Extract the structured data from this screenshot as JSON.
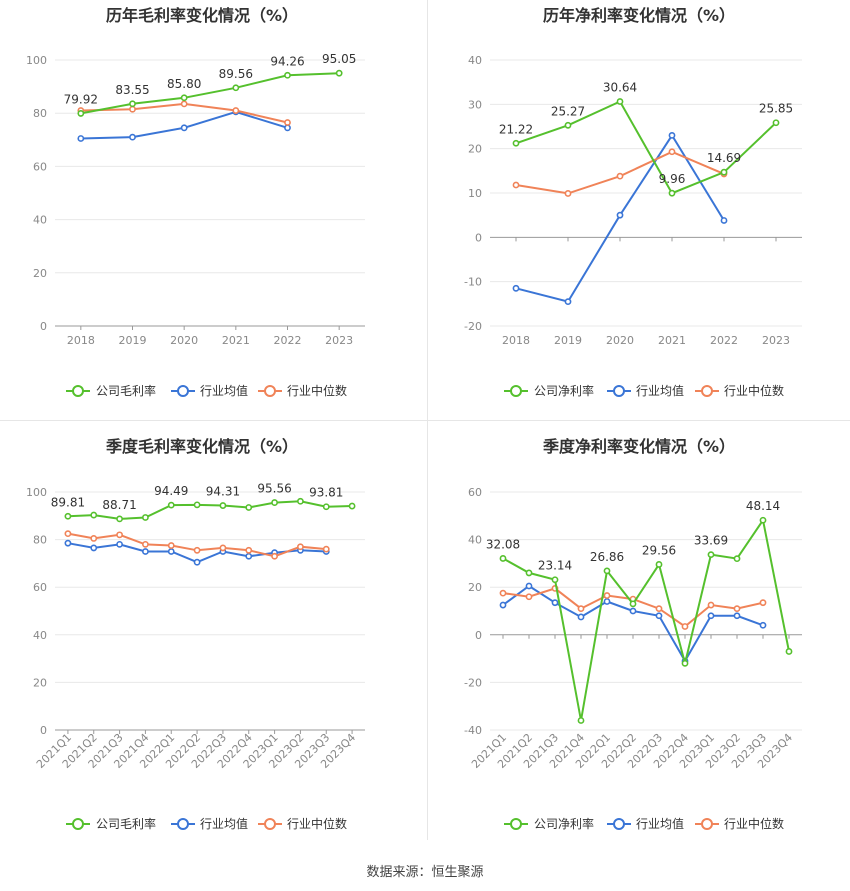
{
  "source_label": "数据来源：恒生聚源",
  "colors": {
    "company": "#55c02d",
    "avg": "#3a75d6",
    "median": "#f08358",
    "grid": "#e8e8e8",
    "axis": "#999999"
  },
  "chart_data": [
    {
      "type": "line",
      "title": "历年毛利率变化情况（%）",
      "categories": [
        "2018",
        "2019",
        "2020",
        "2021",
        "2022",
        "2023"
      ],
      "ylim": [
        0,
        100
      ],
      "yticks": [
        0,
        20,
        40,
        60,
        80,
        100
      ],
      "grid": true,
      "legend_position": "bottom",
      "series": [
        {
          "name": "公司毛利率",
          "key": "company",
          "values": [
            79.92,
            83.55,
            85.8,
            89.56,
            94.26,
            95.05
          ],
          "labels": [
            "79.92",
            "83.55",
            "85.80",
            "89.56",
            "94.26",
            "95.05"
          ]
        },
        {
          "name": "行业均值",
          "key": "avg",
          "values": [
            70.5,
            71.0,
            74.5,
            80.5,
            74.5,
            null
          ]
        },
        {
          "name": "行业中位数",
          "key": "median",
          "values": [
            81.0,
            81.5,
            83.5,
            81.0,
            76.5,
            null
          ]
        }
      ]
    },
    {
      "type": "line",
      "title": "历年净利率变化情况（%）",
      "categories": [
        "2018",
        "2019",
        "2020",
        "2021",
        "2022",
        "2023"
      ],
      "ylim": [
        -20,
        40
      ],
      "yticks": [
        -20,
        -10,
        0,
        10,
        20,
        30,
        40
      ],
      "grid": true,
      "legend_position": "bottom",
      "series": [
        {
          "name": "公司净利率",
          "key": "company",
          "values": [
            21.22,
            25.27,
            30.64,
            9.96,
            14.69,
            25.85
          ],
          "labels": [
            "21.22",
            "25.27",
            "30.64",
            "9.96",
            "14.69",
            "25.85"
          ]
        },
        {
          "name": "行业均值",
          "key": "avg",
          "values": [
            -11.5,
            -14.5,
            5.0,
            23.0,
            3.8,
            null
          ]
        },
        {
          "name": "行业中位数",
          "key": "median",
          "values": [
            11.8,
            9.9,
            13.8,
            19.3,
            14.3,
            null
          ]
        }
      ]
    },
    {
      "type": "line",
      "title": "季度毛利率变化情况（%）",
      "categories": [
        "2021Q1",
        "2021Q2",
        "2021Q3",
        "2021Q4",
        "2022Q1",
        "2022Q2",
        "2022Q3",
        "2022Q4",
        "2023Q1",
        "2023Q2",
        "2023Q3",
        "2023Q4"
      ],
      "ylim": [
        0,
        100
      ],
      "yticks": [
        0,
        20,
        40,
        60,
        80,
        100
      ],
      "grid": true,
      "legend_position": "bottom",
      "series": [
        {
          "name": "公司毛利率",
          "key": "company",
          "values": [
            89.81,
            90.3,
            88.71,
            89.3,
            94.49,
            94.6,
            94.31,
            93.5,
            95.56,
            96.1,
            93.81,
            94.1
          ],
          "labels": [
            "89.81",
            null,
            "88.71",
            null,
            "94.49",
            null,
            "94.31",
            null,
            "95.56",
            null,
            "93.81",
            null
          ]
        },
        {
          "name": "行业均值",
          "key": "avg",
          "values": [
            78.5,
            76.5,
            78.0,
            75.0,
            75.0,
            70.5,
            75.0,
            73.0,
            74.5,
            75.5,
            75.0,
            null
          ]
        },
        {
          "name": "行业中位数",
          "key": "median",
          "values": [
            82.5,
            80.5,
            82.0,
            78.0,
            77.5,
            75.5,
            76.5,
            75.5,
            73.0,
            77.0,
            76.0,
            null
          ]
        }
      ]
    },
    {
      "type": "line",
      "title": "季度净利率变化情况（%）",
      "categories": [
        "2021Q1",
        "2021Q2",
        "2021Q3",
        "2021Q4",
        "2022Q1",
        "2022Q2",
        "2022Q3",
        "2022Q4",
        "2023Q1",
        "2023Q2",
        "2023Q3",
        "2023Q4"
      ],
      "ylim": [
        -40,
        60
      ],
      "yticks": [
        -40,
        -20,
        0,
        20,
        40,
        60
      ],
      "grid": true,
      "legend_position": "bottom",
      "series": [
        {
          "name": "公司净利率",
          "key": "company",
          "values": [
            32.08,
            26.0,
            23.14,
            -36.0,
            26.86,
            13.0,
            29.56,
            -12.0,
            33.69,
            32.0,
            48.14,
            -7.0
          ],
          "labels": [
            "32.08",
            null,
            "23.14",
            null,
            "26.86",
            null,
            "29.56",
            null,
            "33.69",
            null,
            "48.14",
            null
          ]
        },
        {
          "name": "行业均值",
          "key": "avg",
          "values": [
            12.5,
            20.5,
            13.5,
            7.5,
            14.0,
            10.0,
            8.0,
            -11.0,
            8.0,
            8.0,
            4.0,
            null
          ]
        },
        {
          "name": "行业中位数",
          "key": "median",
          "values": [
            17.5,
            16.0,
            19.5,
            11.0,
            16.5,
            15.0,
            11.0,
            3.5,
            12.5,
            11.0,
            13.5,
            null
          ]
        }
      ]
    }
  ]
}
